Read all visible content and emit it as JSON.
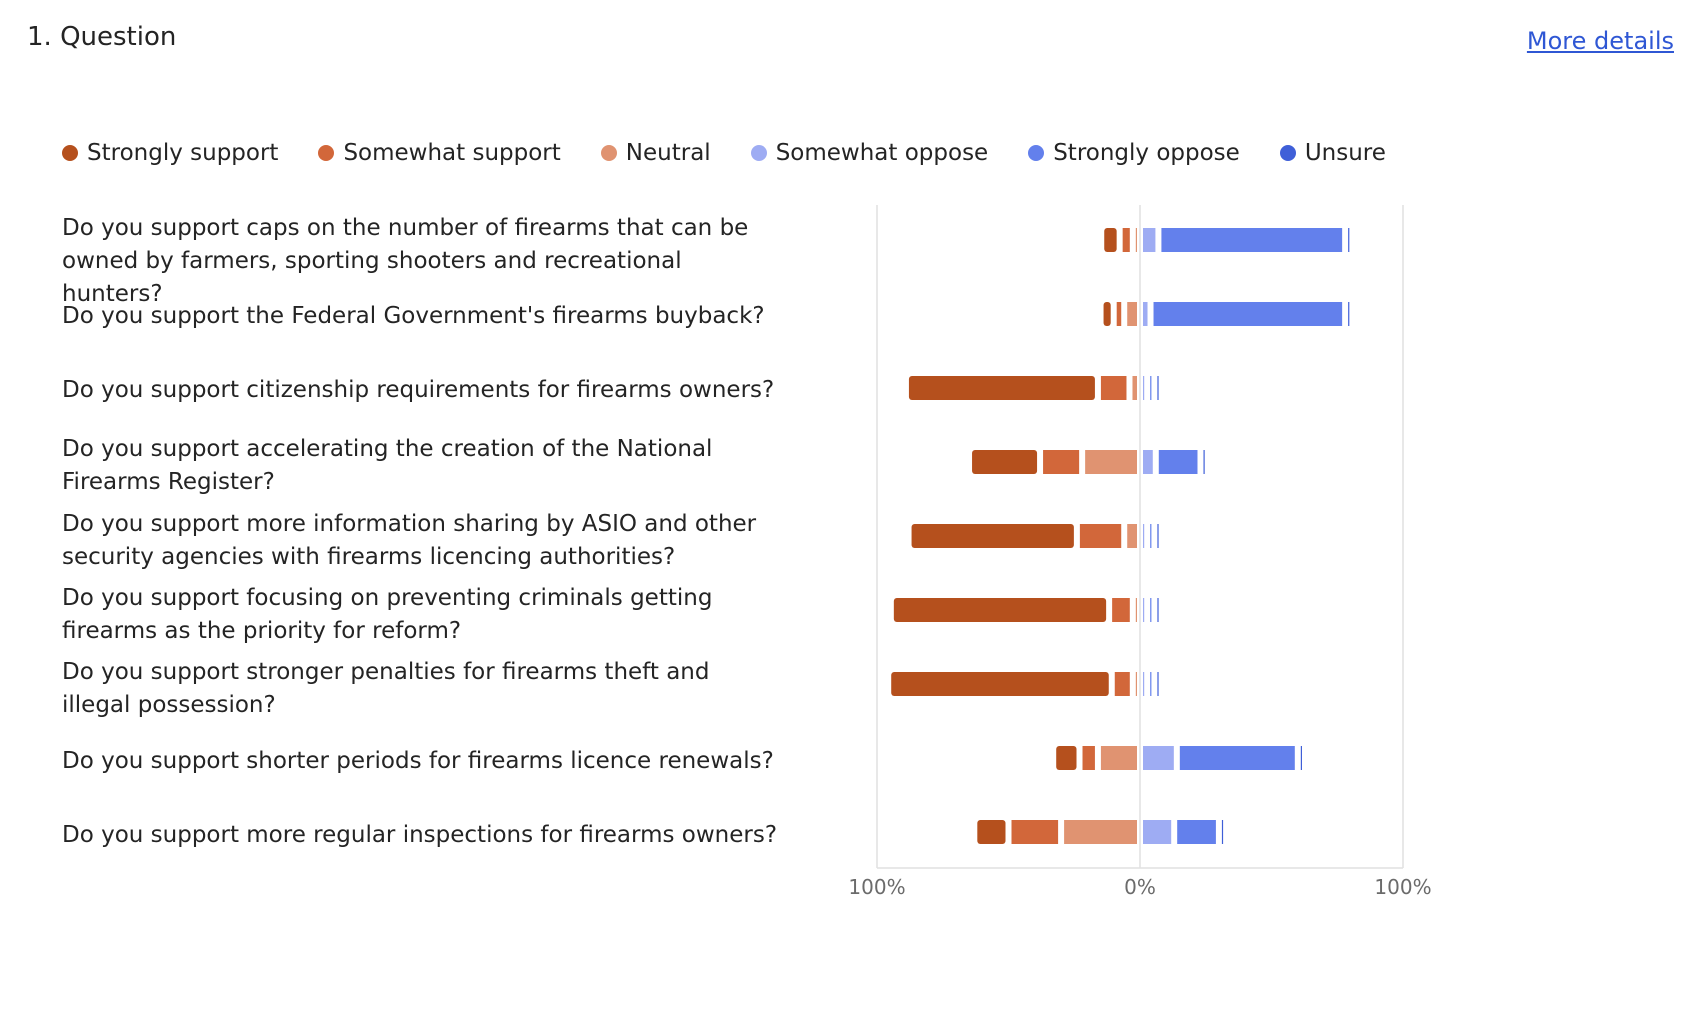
{
  "header": {
    "title": "1. Question",
    "more_details": "More details"
  },
  "chart_data": {
    "type": "bar",
    "subtype": "diverging-stacked",
    "categories": [
      "Do you support caps on the number of firearms that can be owned by farmers, sporting shooters and recreational hunters?",
      "Do you support the Federal Government's firearms buyback?",
      "Do you support citizenship requirements for firearms owners?",
      "Do you support accelerating the creation of the National Firearms Register?",
      "Do you support more information sharing by ASIO and other security agencies with firearms licencing authorities?",
      "Do you support focusing on preventing criminals getting firearms as the priority for reform?",
      "Do you support stronger penalties for firearms theft and illegal possession?",
      "Do you support shorter periods for firearms licence renewals?",
      "Do you support more regular inspections for firearms owners?"
    ],
    "series": [
      {
        "name": "Strongly support",
        "color": "#b5501d",
        "side": "left",
        "values": [
          7,
          5,
          73,
          27,
          64,
          83,
          85,
          10,
          13
        ]
      },
      {
        "name": "Somewhat support",
        "color": "#d2673a",
        "side": "left",
        "values": [
          5,
          4,
          12,
          16,
          18,
          9,
          8,
          7,
          20
        ]
      },
      {
        "name": "Neutral",
        "color": "#e09371",
        "side": "center",
        "values": [
          2,
          6,
          4,
          22,
          6,
          2,
          2,
          16,
          30
        ]
      },
      {
        "name": "Somewhat oppose",
        "color": "#9eacf3",
        "side": "right",
        "values": [
          7,
          4,
          1,
          6,
          2,
          1,
          1,
          14,
          13
        ]
      },
      {
        "name": "Strongly oppose",
        "color": "#6380ec",
        "side": "right",
        "values": [
          71,
          74,
          1,
          17,
          2,
          1,
          0.5,
          46,
          17
        ]
      },
      {
        "name": "Unsure",
        "color": "#3f5fd8",
        "side": "right",
        "values": [
          1,
          1,
          1,
          2,
          1,
          1,
          0.5,
          1,
          1
        ]
      }
    ],
    "xlim": [
      -100,
      100
    ],
    "xtick_labels": [
      "100%",
      "0%",
      "100%"
    ]
  }
}
